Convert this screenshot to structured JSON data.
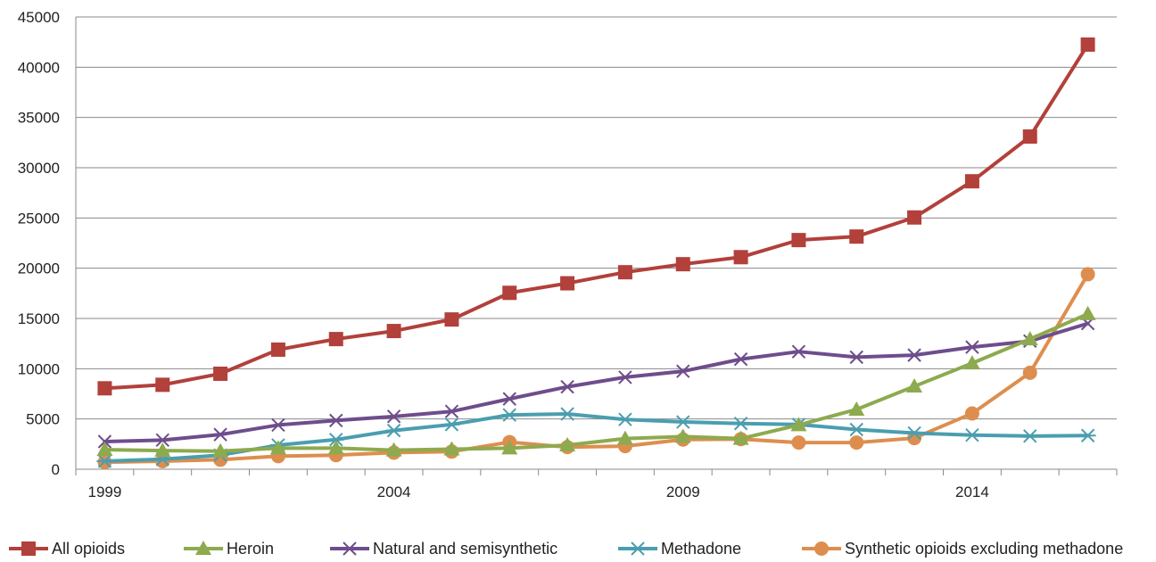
{
  "chart_data": {
    "type": "line",
    "title": "",
    "xlabel": "",
    "ylabel": "",
    "x": [
      1999,
      2000,
      2001,
      2002,
      2003,
      2004,
      2005,
      2006,
      2007,
      2008,
      2009,
      2010,
      2011,
      2012,
      2013,
      2014,
      2015,
      2016
    ],
    "x_tick_labels": [
      "1999",
      "2004",
      "2009",
      "2014"
    ],
    "ylim": [
      0,
      45000
    ],
    "y_ticks": [
      0,
      5000,
      10000,
      15000,
      20000,
      25000,
      30000,
      35000,
      40000,
      45000
    ],
    "grid": "horizontal",
    "legend_position": "bottom",
    "series": [
      {
        "name": "All opioids",
        "color": "#B2403B",
        "marker": "square",
        "values": [
          8050,
          8400,
          9500,
          11900,
          12950,
          13750,
          14900,
          17550,
          18500,
          19600,
          20400,
          21100,
          22800,
          23150,
          25050,
          28650,
          33100,
          42250
        ]
      },
      {
        "name": "Heroin",
        "color": "#8DAA4E",
        "marker": "triangle",
        "values": [
          1950,
          1850,
          1800,
          2100,
          2100,
          1900,
          2000,
          2100,
          2400,
          3050,
          3250,
          3050,
          4400,
          5950,
          8250,
          10550,
          12950,
          15450
        ]
      },
      {
        "name": "Natural and semisynthetic",
        "color": "#6E4D8C",
        "marker": "x",
        "values": [
          2750,
          2900,
          3450,
          4400,
          4850,
          5250,
          5750,
          7000,
          8200,
          9150,
          9750,
          10950,
          11700,
          11150,
          11350,
          12150,
          12750,
          14500
        ]
      },
      {
        "name": "Methadone",
        "color": "#4A9EAF",
        "marker": "asterisk",
        "values": [
          800,
          1000,
          1400,
          2400,
          2950,
          3850,
          4450,
          5400,
          5500,
          4950,
          4700,
          4550,
          4450,
          3950,
          3600,
          3400,
          3300,
          3350
        ]
      },
      {
        "name": "Synthetic opioids excluding methadone",
        "color": "#DD8E4E",
        "marker": "circle",
        "values": [
          700,
          800,
          950,
          1300,
          1400,
          1650,
          1750,
          2700,
          2200,
          2300,
          2950,
          3000,
          2650,
          2650,
          3100,
          5550,
          9600,
          19400
        ]
      }
    ]
  }
}
